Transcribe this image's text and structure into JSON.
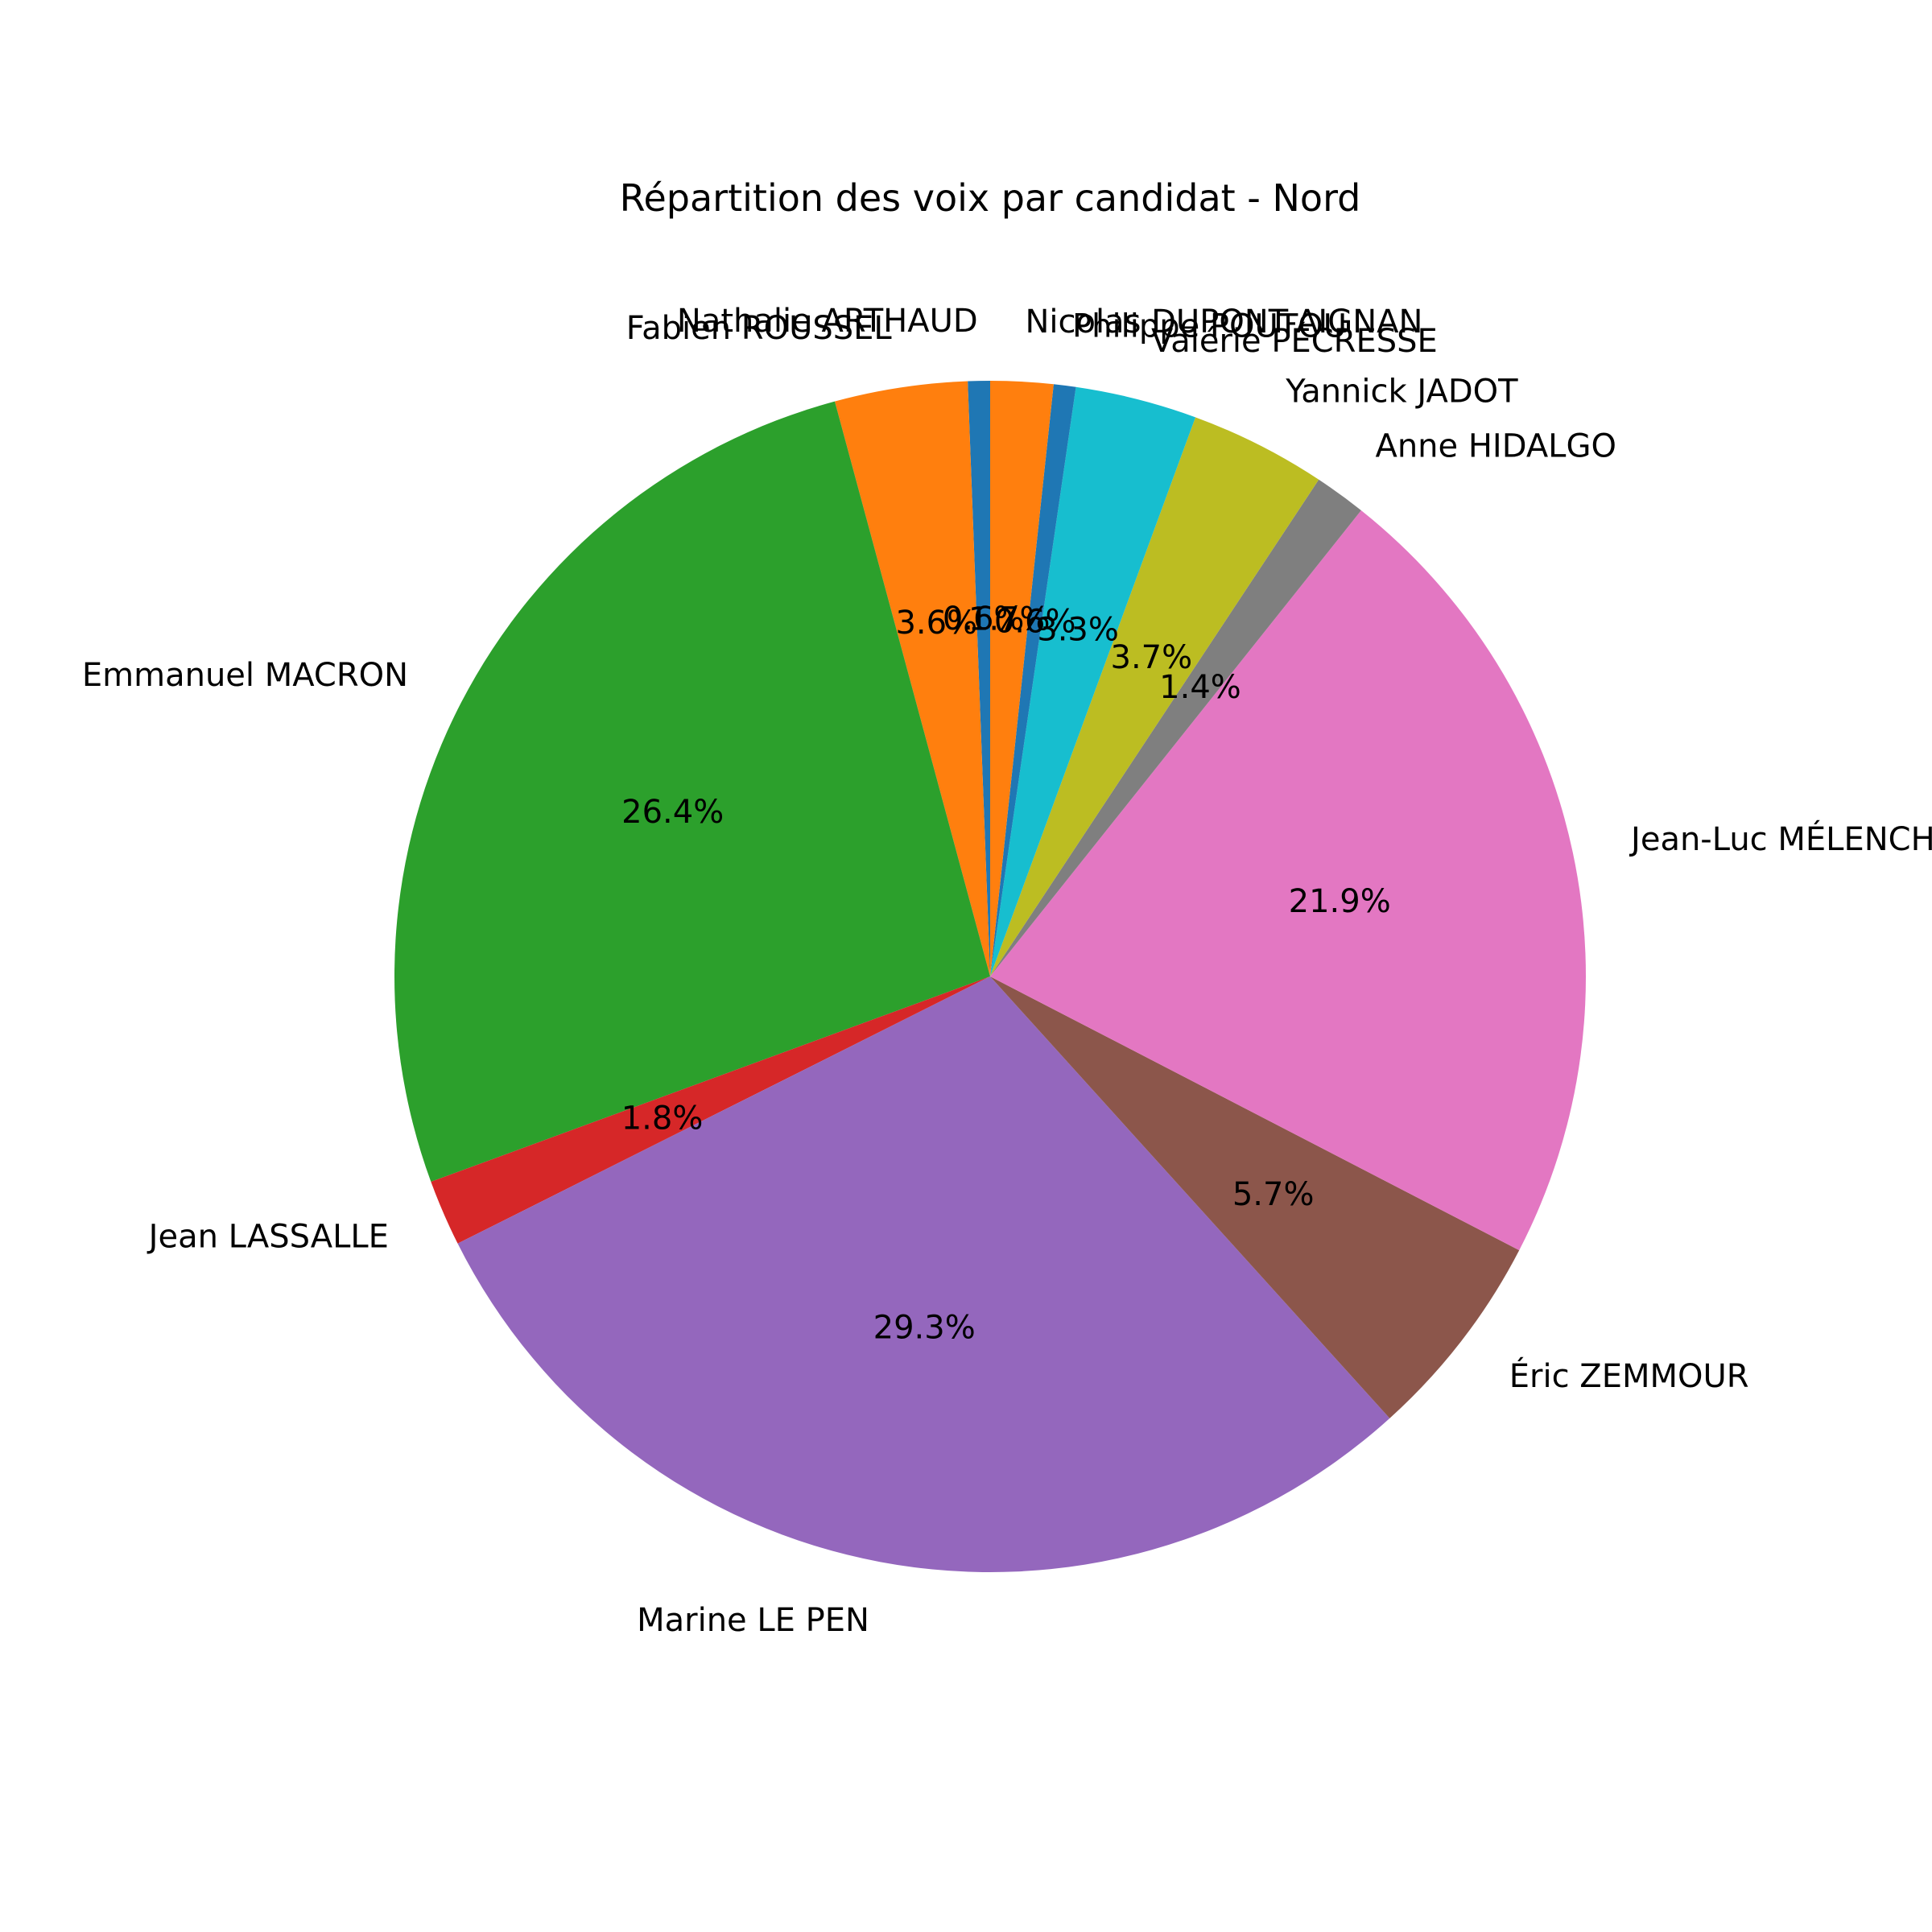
{
  "chart_data": {
    "type": "pie",
    "title": "Répartition des voix par candidat - Nord",
    "slices": [
      {
        "label": "Nathalie ARTHAUD",
        "value": 0.6,
        "pct_label": "0.6%",
        "color": "#1f77b4"
      },
      {
        "label": "Fabien ROUSSEL",
        "value": 3.6,
        "pct_label": "3.6%",
        "color": "#ff7f0e"
      },
      {
        "label": "Emmanuel MACRON",
        "value": 26.4,
        "pct_label": "26.4%",
        "color": "#2ca02c"
      },
      {
        "label": "Jean LASSALLE",
        "value": 1.8,
        "pct_label": "1.8%",
        "color": "#d62728"
      },
      {
        "label": "Marine LE PEN",
        "value": 29.3,
        "pct_label": "29.3%",
        "color": "#9467bd"
      },
      {
        "label": "Éric ZEMMOUR",
        "value": 5.7,
        "pct_label": "5.7%",
        "color": "#8c564b"
      },
      {
        "label": "Jean-Luc MÉLENCHON",
        "value": 21.9,
        "pct_label": "21.9%",
        "color": "#e377c2"
      },
      {
        "label": "Anne HIDALGO",
        "value": 1.4,
        "pct_label": "1.4%",
        "color": "#7f7f7f"
      },
      {
        "label": "Yannick JADOT",
        "value": 3.7,
        "pct_label": "3.7%",
        "color": "#bcbd22"
      },
      {
        "label": "Valérie PÉCRESSE",
        "value": 3.3,
        "pct_label": "3.3%",
        "color": "#17becf"
      },
      {
        "label": "Philippe POUTOU",
        "value": 0.6,
        "pct_label": "0.6%",
        "color": "#1f77b4"
      },
      {
        "label": "Nicolas DUPONT-AIGNAN",
        "value": 1.7,
        "pct_label": "1.7%",
        "color": "#ff7f0e"
      }
    ],
    "start_angle_deg": 90,
    "direction": "counterclockwise",
    "legend": "none"
  }
}
